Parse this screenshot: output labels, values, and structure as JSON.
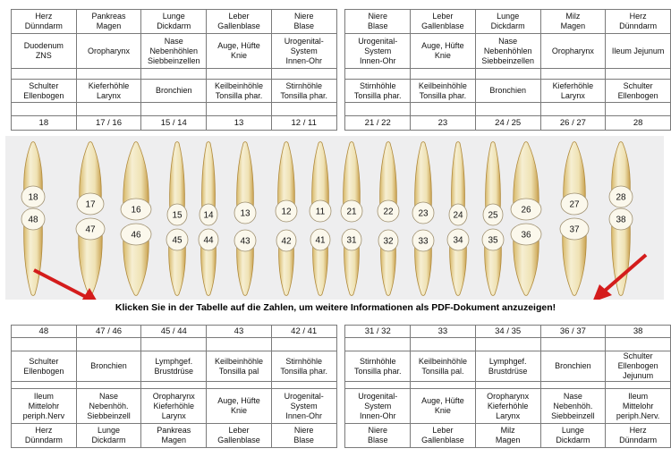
{
  "colors": {
    "purple": "#9b3468",
    "magenta": "#c02aa3",
    "indigo": "#4b2b9a",
    "blue": "#4a8fd6",
    "green": "#1f9a3a",
    "yellow": "#f5ee1a",
    "red": "#e62018",
    "orange": "#f5a316"
  },
  "top": [
    {
      "rows": [
        "Herz\nDünndarm",
        "Duodenum\nZNS",
        "",
        "Schulter\nEllenbogen"
      ],
      "colors": [
        "purple"
      ],
      "num": "18"
    },
    {
      "rows": [
        "Pankreas\nMagen",
        "Oropharynx",
        "",
        "Kieferhöhle\nLarynx"
      ],
      "colors": [
        "magenta",
        "indigo"
      ],
      "num": "17 / 16"
    },
    {
      "rows": [
        "Lunge\nDickdarm",
        "Nase\nNebenhöhlen\nSiebbeinzellen",
        "",
        "Bronchien"
      ],
      "colors": [
        "blue",
        "green"
      ],
      "num": "15 / 14"
    },
    {
      "rows": [
        "Leber\nGallenblase",
        "Auge, Hüfte\nKnie",
        "",
        "Keilbeinhöhle\nTonsilla phar."
      ],
      "colors": [
        "yellow"
      ],
      "num": "13"
    },
    {
      "rows": [
        "Niere\nBlase",
        "Urogenital-\nSystem\nInnen-Ohr",
        "",
        "Stirnhöhle\nTonsilla phar."
      ],
      "colors": [
        "yellow",
        "red"
      ],
      "num": "12 / 11"
    },
    {
      "rows": [
        "Niere\nBlase",
        "Urogenital-\nSystem\nInnen-Ohr",
        "",
        "Stirnhöhle\nTonsilla phar."
      ],
      "colors": [
        "red",
        "orange"
      ],
      "num": "21 / 22"
    },
    {
      "rows": [
        "Leber\nGallenblase",
        "Auge, Hüfte\nKnie",
        "",
        "Keilbeinhöhle\nTonsilla phar."
      ],
      "colors": [
        "yellow"
      ],
      "num": "23"
    },
    {
      "rows": [
        "Lunge\nDickdarm",
        "Nase\nNebenhöhlen\nSiebbeinzellen",
        "",
        "Bronchien"
      ],
      "colors": [
        "green",
        "blue"
      ],
      "num": "24 / 25"
    },
    {
      "rows": [
        "Milz\nMagen",
        "Oropharynx",
        "",
        "Kieferhöhle\nLarynx"
      ],
      "colors": [
        "indigo",
        "magenta"
      ],
      "num": "26 / 27"
    },
    {
      "rows": [
        "Herz\nDünndarm",
        "Ileum Jejunum",
        "",
        "Schulter\nEllenbogen"
      ],
      "colors": [
        "purple"
      ],
      "num": "28"
    }
  ],
  "caption": "Klicken Sie in der Tabelle auf die Zahlen, um weitere Informationen als PDF-Dokument anzuzeigen!",
  "upper_teeth": [
    "18",
    "17",
    "16",
    "15",
    "14",
    "13",
    "12",
    "11",
    "21",
    "22",
    "23",
    "24",
    "25",
    "26",
    "27",
    "28"
  ],
  "lower_teeth": [
    "48",
    "47",
    "46",
    "45",
    "44",
    "43",
    "42",
    "41",
    "31",
    "32",
    "33",
    "34",
    "35",
    "36",
    "37",
    "38"
  ],
  "bottom": [
    {
      "num": "48",
      "colors": [
        "purple"
      ],
      "rows": [
        "Schulter\nEllenbogen",
        "",
        "Ileum\nMittelohr\nperiph.Nerv",
        "Herz\nDünndarm"
      ]
    },
    {
      "num": "47 / 46",
      "colors": [
        "magenta",
        "indigo"
      ],
      "rows": [
        "Bronchien",
        "",
        "Nase\nNebenhöh.\nSiebbeinzell",
        "Lunge\nDickdarm"
      ]
    },
    {
      "num": "45 / 44",
      "colors": [
        "blue",
        "green"
      ],
      "rows": [
        "Lymphgef.\nBrustdrüse",
        "",
        "Oropharynx\nKieferhöhle\nLarynx",
        "Pankreas\nMagen"
      ]
    },
    {
      "num": "43",
      "colors": [
        "yellow"
      ],
      "rows": [
        "Keilbeinhöhle\nTonsilla pal",
        "",
        "Auge, Hüfte\nKnie",
        "Leber\nGallenblase"
      ]
    },
    {
      "num": "42 / 41",
      "colors": [
        "yellow",
        "red"
      ],
      "rows": [
        "Stirnhöhle\nTonsilla phar.",
        "",
        "Urogenital-\nSystem\nInnen-Ohr",
        "Niere\nBlase"
      ]
    },
    {
      "num": "31 / 32",
      "colors": [
        "red",
        "orange"
      ],
      "rows": [
        "Stirnhöhle\nTonsilla phar.",
        "",
        "Urogenital-\nSystem\nInnen-Ohr",
        "Niere\nBlase"
      ]
    },
    {
      "num": "33",
      "colors": [
        "yellow"
      ],
      "rows": [
        "Keilbeinhöhle\nTonsilla pal.",
        "",
        "Auge, Hüfte\nKnie",
        "Leber\nGallenblase"
      ]
    },
    {
      "num": "34 / 35",
      "colors": [
        "green",
        "blue"
      ],
      "rows": [
        "Lymphgef.\nBrustdrüse",
        "",
        "Oropharynx\nKieferhöhle\nLarynx",
        "Milz\nMagen"
      ]
    },
    {
      "num": "36 / 37",
      "colors": [
        "indigo",
        "magenta"
      ],
      "rows": [
        "Bronchien",
        "",
        "Nase\nNebenhöh.\nSiebbeinzell",
        "Lunge\nDickdarm"
      ]
    },
    {
      "num": "38",
      "colors": [
        "purple"
      ],
      "rows": [
        "Schulter\nEllenbogen\nJejunum",
        "",
        "Ileum\nMittelohr\nperiph.Nerv.",
        "Herz\nDünndarm"
      ]
    }
  ]
}
